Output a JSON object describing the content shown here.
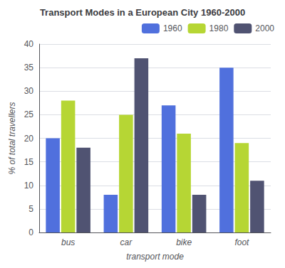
{
  "chart_data": {
    "type": "bar",
    "title": "Transport Modes in a European City 1960-2000",
    "xlabel": "transport mode",
    "ylabel": "% of total travellers",
    "categories": [
      "bus",
      "car",
      "bike",
      "foot"
    ],
    "series": [
      {
        "name": "1960",
        "values": [
          20,
          8,
          27,
          35
        ]
      },
      {
        "name": "1980",
        "values": [
          28,
          25,
          21,
          19
        ]
      },
      {
        "name": "2000",
        "values": [
          18,
          37,
          8,
          11
        ]
      }
    ],
    "ylim": [
      0,
      40
    ],
    "yticks": [
      0,
      5,
      10,
      15,
      20,
      25,
      30,
      35,
      40
    ],
    "grid": true,
    "legend": "upper right"
  }
}
